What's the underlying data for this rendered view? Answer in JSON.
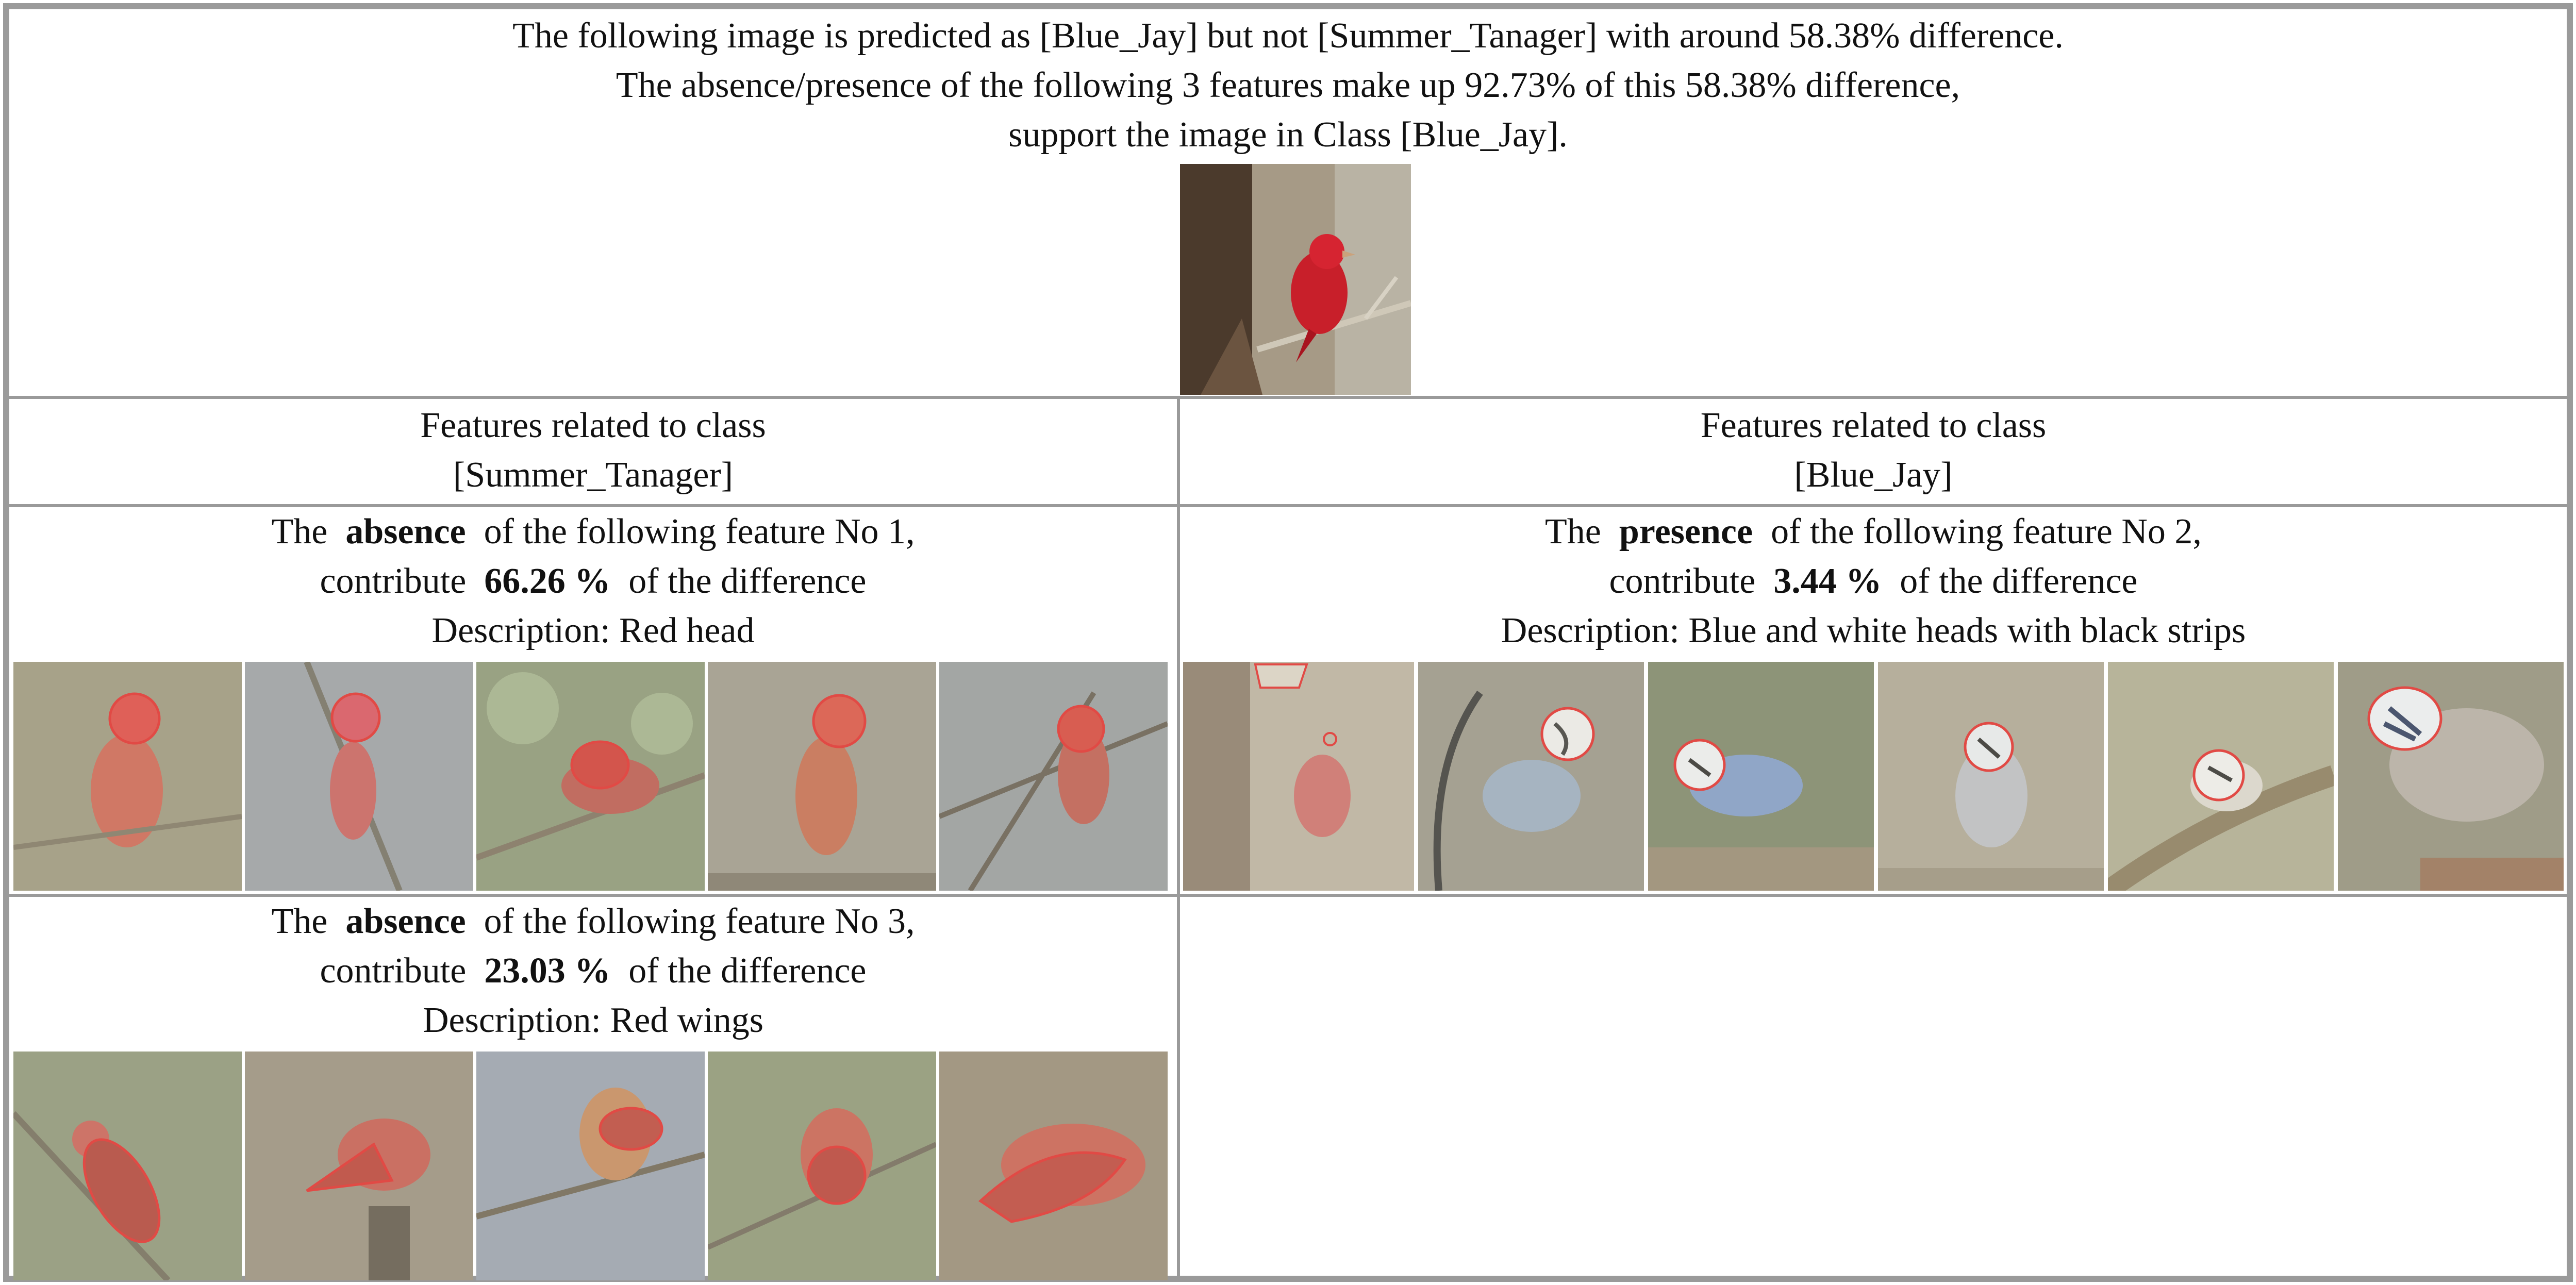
{
  "header": {
    "line1": "The following image is predicted as [Blue_Jay] but not [Summer_Tanager] with around 58.38% difference.",
    "line2": "The absence/presence of the following 3 features make up 92.73% of this 58.38% difference,",
    "line3": "support the image in Class [Blue_Jay].",
    "image": "summer-tanager-perched-on-branch"
  },
  "columns": [
    {
      "line1": "Features related to class",
      "line2": "[Summer_Tanager]"
    },
    {
      "line1": "Features related to class",
      "line2": "[Blue_Jay]"
    }
  ],
  "features": [
    {
      "prefix": "The",
      "kind": "absence",
      "middle": "of the following feature No 1,",
      "contribute_label": "contribute",
      "percent": "66.26 %",
      "suffix": "of the difference",
      "description": "Description: Red head",
      "thumbnails": [
        "red-head-crop-1",
        "red-head-crop-2",
        "red-head-crop-3",
        "red-head-crop-4",
        "red-head-crop-5"
      ]
    },
    {
      "prefix": "The",
      "kind": "presence",
      "middle": "of the following feature No 2,",
      "contribute_label": "contribute",
      "percent": "3.44 %",
      "suffix": "of the difference",
      "description": "Description: Blue and white heads with black strips",
      "thumbnails": [
        "blue-jay-head-crop-1",
        "blue-jay-head-crop-2",
        "blue-jay-head-crop-3",
        "blue-jay-head-crop-4",
        "blue-jay-head-crop-5"
      ]
    },
    {
      "prefix": "The",
      "kind": "absence",
      "middle": "of the following feature No 3,",
      "contribute_label": "contribute",
      "percent": "23.03 %",
      "suffix": "of the difference",
      "description": "Description: Red wings",
      "thumbnails": [
        "red-wing-crop-1",
        "red-wing-crop-2",
        "red-wing-crop-3",
        "red-wing-crop-4",
        "red-wing-crop-5"
      ]
    }
  ],
  "colors": {
    "border": "#9a9a9a",
    "outline": "#e01010",
    "tanager_red": "#d8302a",
    "jay_blue": "#5b7fb6"
  }
}
